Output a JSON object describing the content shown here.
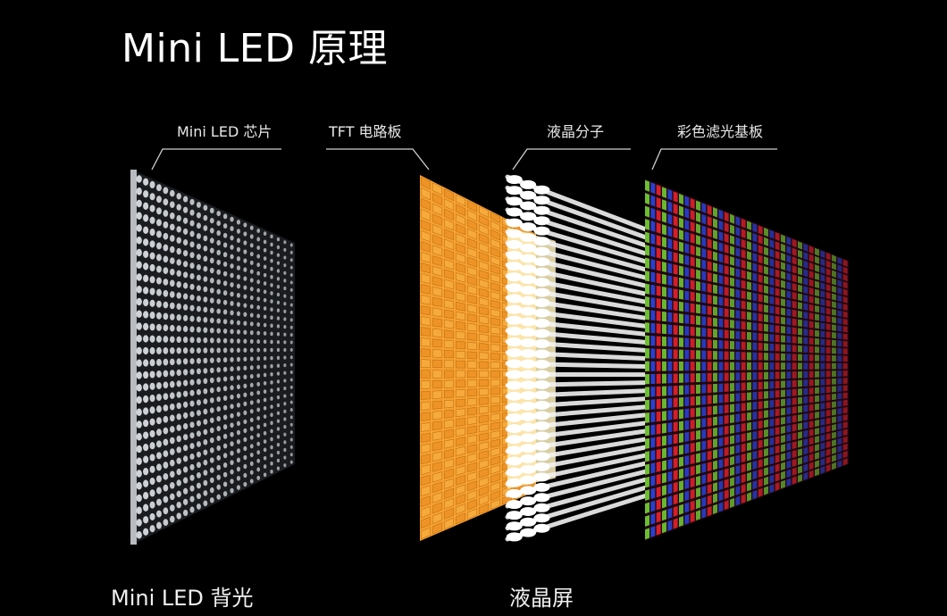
{
  "title": "Mini LED 原理",
  "layers": [
    {
      "id": "led",
      "label": "Mini LED 芯片"
    },
    {
      "id": "tft",
      "label": "TFT 电路板"
    },
    {
      "id": "lc",
      "label": "液晶分子"
    },
    {
      "id": "cf",
      "label": "彩色滤光基板"
    }
  ],
  "groups": {
    "backlight": "Mini LED 背光",
    "lcd": "液晶屏"
  },
  "colors": {
    "background": "#000000",
    "led": "#e6eaee",
    "tft": "#f5a030",
    "lc": "#f2f2f2",
    "cf_red": "#e0202a",
    "cf_green": "#6cc030",
    "cf_blue": "#2a40d0"
  }
}
